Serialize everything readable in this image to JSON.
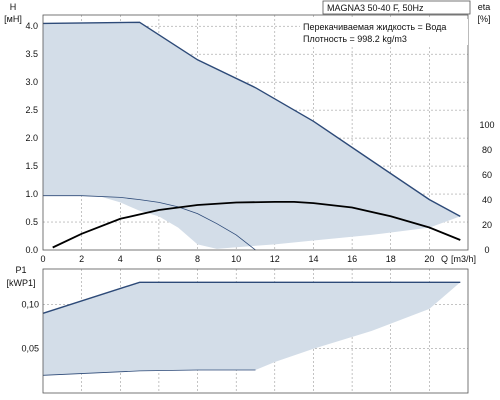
{
  "chart_data": [
    {
      "type": "line",
      "title": "MAGNA3 50-40 F, 50Hz",
      "annotations": [
        "Перекачиваемая жидкость = Вода",
        "Плотность = 998.2 kg/m3"
      ],
      "ylabel": "H",
      "yunit": "[мH]",
      "y2label": "eta",
      "y2unit": "[%]",
      "xlabel": "Q",
      "xunit": "[m3/h]",
      "xlim": [
        0,
        22
      ],
      "ylim": [
        0,
        4.2
      ],
      "y2lim": [
        0,
        100
      ],
      "x_ticks": [
        "0",
        "2",
        "4",
        "6",
        "8",
        "10",
        "12",
        "14",
        "16",
        "18",
        "20"
      ],
      "y_ticks": [
        "0.0",
        "0.5",
        "1.0",
        "1.5",
        "2.0",
        "2.5",
        "3.0",
        "3.5",
        "4.0"
      ],
      "y2_ticks": [
        "0",
        "20",
        "40",
        "60",
        "80",
        "100"
      ],
      "grid": true,
      "series": [
        {
          "role": "operating-range",
          "x": [
            0,
            5,
            8,
            11,
            14,
            17,
            20,
            21.6,
            20,
            17,
            14,
            12,
            10,
            9,
            8,
            7,
            6,
            5,
            4,
            3,
            2,
            1,
            0
          ],
          "y": [
            4.05,
            4.07,
            3.4,
            2.9,
            2.3,
            1.6,
            0.9,
            0.6,
            0.4,
            0.27,
            0.17,
            0.1,
            0.05,
            0.02,
            0.1,
            0.4,
            0.6,
            0.7,
            0.85,
            0.95,
            0.97,
            0.97,
            0.97
          ]
        },
        {
          "role": "max-curve",
          "x": [
            0,
            5,
            8,
            11,
            14,
            17,
            20,
            21.6
          ],
          "y": [
            4.05,
            4.07,
            3.4,
            2.9,
            2.3,
            1.6,
            0.9,
            0.6
          ]
        },
        {
          "role": "min-curve",
          "x": [
            0,
            2,
            4,
            5,
            6,
            7,
            8,
            9,
            10,
            11
          ],
          "y": [
            0.97,
            0.97,
            0.94,
            0.9,
            0.85,
            0.77,
            0.65,
            0.47,
            0.27,
            0
          ]
        },
        {
          "role": "efficiency",
          "x": [
            0.5,
            2,
            4,
            6,
            8,
            10,
            12,
            13,
            14,
            16,
            18,
            20,
            21.6
          ],
          "y2": [
            2,
            13,
            25,
            32,
            36,
            38,
            38.5,
            38.5,
            37.5,
            34,
            27,
            18,
            8
          ]
        }
      ]
    },
    {
      "type": "line",
      "ylabel": "P1",
      "yunit": "[kWP1]",
      "xlim": [
        0,
        22
      ],
      "ylim": [
        0,
        0.14
      ],
      "y_ticks": [
        "0,05",
        "0,10"
      ],
      "grid": true,
      "series": [
        {
          "role": "power-range",
          "x": [
            0,
            5,
            21.6,
            20,
            17,
            14,
            12,
            11,
            8,
            5,
            0
          ],
          "y": [
            0.09,
            0.125,
            0.125,
            0.095,
            0.07,
            0.05,
            0.035,
            0.026,
            0.026,
            0.025,
            0.02
          ]
        }
      ]
    }
  ]
}
